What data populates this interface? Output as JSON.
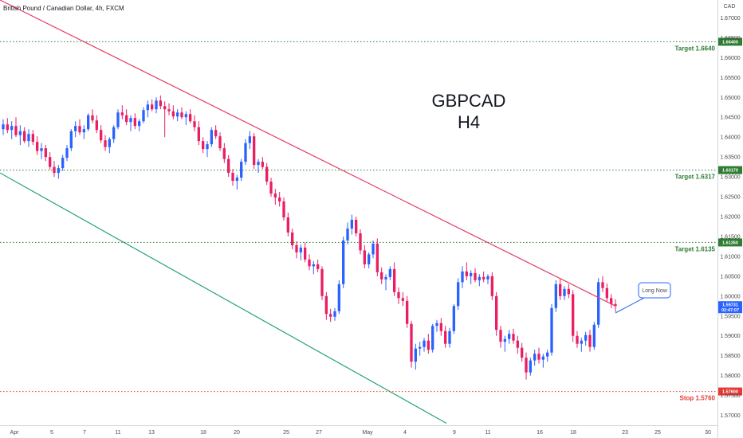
{
  "symbol_title": "British Pound / Canadian Dollar, 4h, FXCM",
  "big_title": {
    "line1": "GBPCAD",
    "line2": "H4"
  },
  "callout_text": "Long Now",
  "colors": {
    "up": "#2962ff",
    "down": "#e91e63",
    "resistance_line": "#e53e66",
    "channel_line": "#26a17b",
    "target_line": "#2e7d32",
    "stop_line": "#e53935",
    "price_tag": "#2962ff",
    "callout_border": "#2962ff",
    "axis_text": "#4a4a4a"
  },
  "chart_data": {
    "type": "candlestick",
    "currency": "CAD",
    "ylim": [
      1.5675,
      1.6745
    ],
    "y_ticks": [
      "1.67000",
      "1.66500",
      "1.66000",
      "1.65500",
      "1.65000",
      "1.64500",
      "1.64000",
      "1.63500",
      "1.63000",
      "1.62500",
      "1.62000",
      "1.61500",
      "1.61000",
      "1.60500",
      "1.60000",
      "1.59500",
      "1.59000",
      "1.58500",
      "1.58000",
      "1.57500",
      "1.57000"
    ],
    "x_ticks": [
      "Apr",
      "5",
      "7",
      "11",
      "13",
      "18",
      "20",
      "25",
      "27",
      "May",
      "4",
      "9",
      "11",
      "16",
      "18",
      "23",
      "25",
      "30"
    ],
    "horizontal_levels": [
      {
        "label": "Target 1.6640",
        "value": 1.664,
        "tag": "1.66400",
        "kind": "target"
      },
      {
        "label": "Target 1.6317",
        "value": 1.6317,
        "tag": "1.63170",
        "kind": "target"
      },
      {
        "label": "Target 1.6135",
        "value": 1.6135,
        "tag": "1.61350",
        "kind": "target"
      },
      {
        "label": "Stop 1.5760",
        "value": 1.576,
        "tag": "1.57600",
        "kind": "stop"
      }
    ],
    "current_price": {
      "value": "1.59731",
      "countdown": "02:47:07"
    },
    "trendlines": [
      {
        "name": "descending resistance",
        "from": [
          "start",
          1.6745
        ],
        "to": [
          "callout",
          1.5975
        ]
      },
      {
        "name": "descending channel support",
        "from": [
          "start",
          1.631
        ],
        "to": [
          "end",
          1.568
        ]
      }
    ],
    "ohlc": [
      [
        1.642,
        1.6445,
        1.6405,
        1.6432
      ],
      [
        1.6432,
        1.6448,
        1.641,
        1.6418
      ],
      [
        1.6418,
        1.644,
        1.6395,
        1.6428
      ],
      [
        1.6428,
        1.645,
        1.64,
        1.6405
      ],
      [
        1.6405,
        1.643,
        1.638,
        1.6415
      ],
      [
        1.6415,
        1.6425,
        1.6385,
        1.639
      ],
      [
        1.639,
        1.642,
        1.6375,
        1.6408
      ],
      [
        1.6408,
        1.6418,
        1.638,
        1.6388
      ],
      [
        1.6388,
        1.6402,
        1.6355,
        1.6365
      ],
      [
        1.6365,
        1.6385,
        1.6345,
        1.6372
      ],
      [
        1.6372,
        1.638,
        1.634,
        1.635
      ],
      [
        1.635,
        1.6362,
        1.6318,
        1.6325
      ],
      [
        1.6325,
        1.634,
        1.63,
        1.631
      ],
      [
        1.631,
        1.633,
        1.6295,
        1.6322
      ],
      [
        1.6322,
        1.6355,
        1.6315,
        1.6348
      ],
      [
        1.6348,
        1.638,
        1.634,
        1.6372
      ],
      [
        1.6372,
        1.642,
        1.6365,
        1.6415
      ],
      [
        1.6415,
        1.644,
        1.64,
        1.6428
      ],
      [
        1.6428,
        1.6445,
        1.6405,
        1.6412
      ],
      [
        1.6412,
        1.643,
        1.6395,
        1.642
      ],
      [
        1.642,
        1.646,
        1.6415,
        1.6455
      ],
      [
        1.6455,
        1.647,
        1.6435,
        1.6442
      ],
      [
        1.6442,
        1.6455,
        1.641,
        1.6418
      ],
      [
        1.6418,
        1.643,
        1.6385,
        1.6392
      ],
      [
        1.6392,
        1.6405,
        1.6365,
        1.6375
      ],
      [
        1.6375,
        1.64,
        1.636,
        1.6395
      ],
      [
        1.6395,
        1.643,
        1.6385,
        1.6425
      ],
      [
        1.6425,
        1.647,
        1.642,
        1.6462
      ],
      [
        1.6462,
        1.648,
        1.6445,
        1.6455
      ],
      [
        1.6455,
        1.647,
        1.643,
        1.6438
      ],
      [
        1.6438,
        1.6455,
        1.6415,
        1.6448
      ],
      [
        1.6448,
        1.646,
        1.642,
        1.6428
      ],
      [
        1.6428,
        1.6445,
        1.6415,
        1.644
      ],
      [
        1.644,
        1.6475,
        1.6435,
        1.6468
      ],
      [
        1.6468,
        1.6492,
        1.645,
        1.6482
      ],
      [
        1.6482,
        1.6495,
        1.6465,
        1.647
      ],
      [
        1.647,
        1.65,
        1.646,
        1.6492
      ],
      [
        1.6492,
        1.6505,
        1.647,
        1.6478
      ],
      [
        1.6478,
        1.649,
        1.64,
        1.647
      ],
      [
        1.647,
        1.6485,
        1.6455,
        1.6465
      ],
      [
        1.6465,
        1.648,
        1.6445,
        1.6452
      ],
      [
        1.6452,
        1.647,
        1.644,
        1.6462
      ],
      [
        1.6462,
        1.6475,
        1.6445,
        1.645
      ],
      [
        1.645,
        1.6465,
        1.643,
        1.6458
      ],
      [
        1.6458,
        1.647,
        1.6435,
        1.644
      ],
      [
        1.644,
        1.6455,
        1.6415,
        1.6425
      ],
      [
        1.6425,
        1.644,
        1.638,
        1.639
      ],
      [
        1.639,
        1.64,
        1.636,
        1.637
      ],
      [
        1.637,
        1.639,
        1.635,
        1.6382
      ],
      [
        1.6382,
        1.6425,
        1.6375,
        1.6418
      ],
      [
        1.6418,
        1.643,
        1.6395,
        1.6402
      ],
      [
        1.6402,
        1.6412,
        1.6365,
        1.6372
      ],
      [
        1.6372,
        1.6385,
        1.6335,
        1.6345
      ],
      [
        1.6345,
        1.6355,
        1.63,
        1.631
      ],
      [
        1.631,
        1.632,
        1.6278,
        1.629
      ],
      [
        1.629,
        1.6305,
        1.6268,
        1.6298
      ],
      [
        1.6298,
        1.6345,
        1.629,
        1.6338
      ],
      [
        1.6338,
        1.6395,
        1.633,
        1.6385
      ],
      [
        1.6385,
        1.6415,
        1.637,
        1.6402
      ],
      [
        1.6402,
        1.641,
        1.632,
        1.633
      ],
      [
        1.633,
        1.6345,
        1.631,
        1.6338
      ],
      [
        1.6338,
        1.635,
        1.632,
        1.6325
      ],
      [
        1.6325,
        1.6335,
        1.628,
        1.6288
      ],
      [
        1.6288,
        1.6298,
        1.625,
        1.6258
      ],
      [
        1.6258,
        1.627,
        1.623,
        1.6248
      ],
      [
        1.6248,
        1.6262,
        1.6225,
        1.6238
      ],
      [
        1.6238,
        1.6248,
        1.619,
        1.6198
      ],
      [
        1.6198,
        1.621,
        1.615,
        1.616
      ],
      [
        1.616,
        1.617,
        1.6118,
        1.6128
      ],
      [
        1.6128,
        1.6138,
        1.6095,
        1.611
      ],
      [
        1.611,
        1.613,
        1.609,
        1.6122
      ],
      [
        1.6122,
        1.6135,
        1.6085,
        1.6092
      ],
      [
        1.6092,
        1.6105,
        1.6065,
        1.6075
      ],
      [
        1.6075,
        1.6088,
        1.6055,
        1.608
      ],
      [
        1.608,
        1.6092,
        1.606,
        1.6068
      ],
      [
        1.6068,
        1.6075,
        1.599,
        1.6
      ],
      [
        1.6,
        1.601,
        1.594,
        1.5955
      ],
      [
        1.5955,
        1.5968,
        1.5935,
        1.5948
      ],
      [
        1.5948,
        1.597,
        1.5938,
        1.5962
      ],
      [
        1.5962,
        1.604,
        1.5955,
        1.603
      ],
      [
        1.603,
        1.615,
        1.602,
        1.614
      ],
      [
        1.614,
        1.6185,
        1.613,
        1.617
      ],
      [
        1.617,
        1.6205,
        1.6155,
        1.6192
      ],
      [
        1.6192,
        1.62,
        1.615,
        1.6158
      ],
      [
        1.6158,
        1.6168,
        1.6105,
        1.6115
      ],
      [
        1.6115,
        1.6128,
        1.607,
        1.608
      ],
      [
        1.608,
        1.611,
        1.607,
        1.6105
      ],
      [
        1.6105,
        1.614,
        1.6095,
        1.6132
      ],
      [
        1.6132,
        1.6145,
        1.605,
        1.606
      ],
      [
        1.606,
        1.6072,
        1.603,
        1.6042
      ],
      [
        1.6042,
        1.6055,
        1.6015,
        1.6048
      ],
      [
        1.6048,
        1.6075,
        1.604,
        1.6068
      ],
      [
        1.6068,
        1.6085,
        1.6,
        1.601
      ],
      [
        1.601,
        1.6022,
        1.598,
        1.5995
      ],
      [
        1.5995,
        1.601,
        1.5975,
        1.5988
      ],
      [
        1.5988,
        1.6,
        1.592,
        1.593
      ],
      [
        1.593,
        1.5938,
        1.582,
        1.5835
      ],
      [
        1.5835,
        1.588,
        1.5815,
        1.5868
      ],
      [
        1.5868,
        1.5885,
        1.585,
        1.5872
      ],
      [
        1.5872,
        1.5895,
        1.586,
        1.5888
      ],
      [
        1.5888,
        1.5905,
        1.5855,
        1.5865
      ],
      [
        1.5865,
        1.593,
        1.5858,
        1.5925
      ],
      [
        1.5925,
        1.594,
        1.591,
        1.5932
      ],
      [
        1.5932,
        1.5945,
        1.59,
        1.5912
      ],
      [
        1.5912,
        1.5925,
        1.587,
        1.588
      ],
      [
        1.588,
        1.592,
        1.587,
        1.5912
      ],
      [
        1.5912,
        1.598,
        1.5905,
        1.5975
      ],
      [
        1.5975,
        1.6045,
        1.5965,
        1.6035
      ],
      [
        1.6035,
        1.6075,
        1.602,
        1.6062
      ],
      [
        1.6062,
        1.6085,
        1.604,
        1.605
      ],
      [
        1.605,
        1.6065,
        1.603,
        1.6058
      ],
      [
        1.6058,
        1.607,
        1.6035,
        1.604
      ],
      [
        1.604,
        1.6055,
        1.6025,
        1.6048
      ],
      [
        1.6048,
        1.6062,
        1.6035,
        1.6042
      ],
      [
        1.6042,
        1.6055,
        1.603,
        1.605
      ],
      [
        1.605,
        1.606,
        1.599,
        1.6
      ],
      [
        1.6,
        1.601,
        1.59,
        1.5915
      ],
      [
        1.5915,
        1.5925,
        1.587,
        1.5885
      ],
      [
        1.5885,
        1.59,
        1.586,
        1.5892
      ],
      [
        1.5892,
        1.5915,
        1.588,
        1.5905
      ],
      [
        1.5905,
        1.5918,
        1.588,
        1.5888
      ],
      [
        1.5888,
        1.59,
        1.5855,
        1.587
      ],
      [
        1.587,
        1.5882,
        1.5835,
        1.5845
      ],
      [
        1.5845,
        1.5858,
        1.579,
        1.5808
      ],
      [
        1.5808,
        1.5845,
        1.58,
        1.5838
      ],
      [
        1.5838,
        1.5865,
        1.5825,
        1.5855
      ],
      [
        1.5855,
        1.587,
        1.583,
        1.584
      ],
      [
        1.584,
        1.5855,
        1.582,
        1.5848
      ],
      [
        1.5848,
        1.5865,
        1.5835,
        1.5858
      ],
      [
        1.5858,
        1.598,
        1.585,
        1.597
      ],
      [
        1.597,
        1.604,
        1.596,
        1.603
      ],
      [
        1.603,
        1.6045,
        1.599,
        1.6
      ],
      [
        1.6,
        1.6025,
        1.599,
        1.6018
      ],
      [
        1.6018,
        1.603,
        1.5995,
        1.6005
      ],
      [
        1.6005,
        1.6015,
        1.5885,
        1.59
      ],
      [
        1.59,
        1.5912,
        1.587,
        1.588
      ],
      [
        1.588,
        1.5895,
        1.586,
        1.5888
      ],
      [
        1.5888,
        1.591,
        1.5875,
        1.5902
      ],
      [
        1.5902,
        1.5915,
        1.586,
        1.5872
      ],
      [
        1.5872,
        1.5935,
        1.5865,
        1.5928
      ],
      [
        1.5928,
        1.6045,
        1.592,
        1.6035
      ],
      [
        1.6035,
        1.605,
        1.601,
        1.602
      ],
      [
        1.602,
        1.6032,
        1.5985,
        1.5995
      ],
      [
        1.5995,
        1.6005,
        1.597,
        1.598
      ],
      [
        1.598,
        1.5992,
        1.596,
        1.5975
      ]
    ]
  }
}
